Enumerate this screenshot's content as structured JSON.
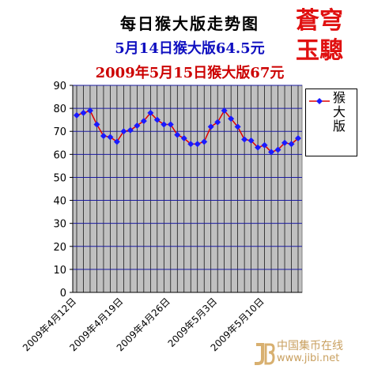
{
  "chart_data": {
    "type": "line",
    "title": "每日猴大版走势图",
    "subtitle1": "5月14日猴大版64.5元",
    "subtitle2": "2009年5月15日猴大版67元",
    "xlabel": "",
    "ylabel": "",
    "ylim": [
      0,
      90
    ],
    "yticks": [
      0,
      10,
      20,
      30,
      40,
      50,
      60,
      70,
      80,
      90
    ],
    "grid": true,
    "legend_position": "right",
    "xtick_labels": [
      "2009年4月12日",
      "2009年4月19日",
      "2009年4月26日",
      "2009年5月3日",
      "2009年5月10日"
    ],
    "xtick_indices": [
      0,
      7,
      14,
      21,
      28
    ],
    "series": [
      {
        "name": "猴大版",
        "color": "#1a1aff",
        "line_color": "#e00000",
        "values": [
          77,
          78,
          79,
          73,
          68,
          67.5,
          65.5,
          70,
          70.5,
          72.5,
          74.5,
          78,
          75,
          73,
          73,
          68.5,
          67,
          64.5,
          64.5,
          65.5,
          72,
          74,
          79,
          75.5,
          72,
          66.5,
          66,
          63,
          64,
          61,
          62,
          65,
          64.5,
          67
        ]
      }
    ]
  },
  "stamp": {
    "line1": "蒼穹",
    "line2": "玉驄"
  },
  "watermark": {
    "name": "中国集币在线",
    "url": "www.jibi.net"
  }
}
